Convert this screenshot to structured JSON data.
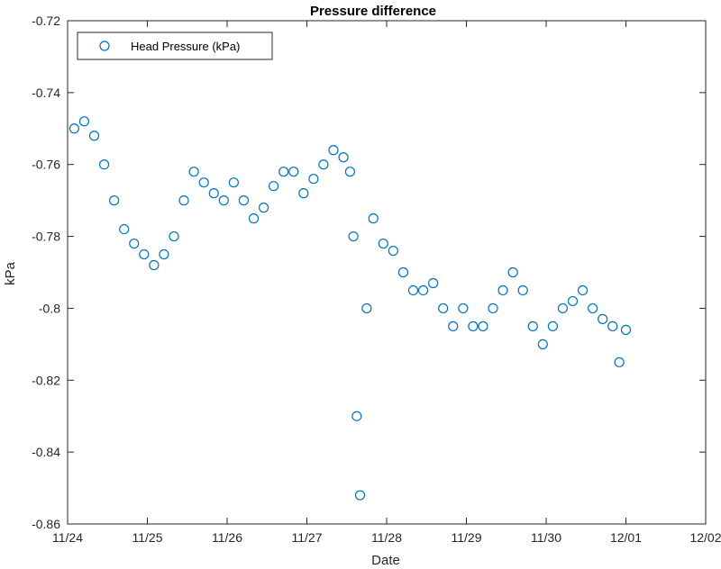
{
  "chart_data": {
    "type": "scatter",
    "title": "Pressure difference",
    "xlabel": "Date",
    "ylabel": "kPa",
    "x_tick_labels": [
      "11/24",
      "11/25",
      "11/26",
      "11/27",
      "11/28",
      "11/29",
      "11/30",
      "12/01",
      "12/02"
    ],
    "y_tick_labels": [
      "-0.72",
      "-0.74",
      "-0.76",
      "-0.78",
      "-0.8",
      "-0.82",
      "-0.84",
      "-0.86"
    ],
    "ylim": [
      -0.86,
      -0.72
    ],
    "xlim": [
      "11/24",
      "12/02"
    ],
    "grid": false,
    "legend_position": "top-left",
    "marker": "open-circle",
    "colors": {
      "series": "#0072bd"
    },
    "series": [
      {
        "name": "Head Pressure (kPa)",
        "x": [
          "11/24 02:00",
          "11/24 05:00",
          "11/24 08:00",
          "11/24 11:00",
          "11/24 14:00",
          "11/24 17:00",
          "11/24 20:00",
          "11/24 23:00",
          "11/25 02:00",
          "11/25 05:00",
          "11/25 08:00",
          "11/25 11:00",
          "11/25 14:00",
          "11/25 17:00",
          "11/25 20:00",
          "11/25 23:00",
          "11/26 02:00",
          "11/26 05:00",
          "11/26 08:00",
          "11/26 11:00",
          "11/26 14:00",
          "11/26 17:00",
          "11/26 20:00",
          "11/26 23:00",
          "11/27 02:00",
          "11/27 05:00",
          "11/27 08:00",
          "11/27 11:00",
          "11/27 13:00",
          "11/27 14:00",
          "11/27 15:00",
          "11/27 16:00",
          "11/27 18:00",
          "11/27 20:00",
          "11/27 23:00",
          "11/28 02:00",
          "11/28 05:00",
          "11/28 08:00",
          "11/28 11:00",
          "11/28 14:00",
          "11/28 17:00",
          "11/28 20:00",
          "11/28 23:00",
          "11/29 02:00",
          "11/29 05:00",
          "11/29 08:00",
          "11/29 11:00",
          "11/29 14:00",
          "11/29 17:00",
          "11/29 20:00",
          "11/29 23:00",
          "11/30 02:00",
          "11/30 05:00",
          "11/30 08:00",
          "11/30 11:00",
          "11/30 14:00",
          "11/30 17:00",
          "11/30 20:00",
          "11/30 22:00",
          "12/01 00:00"
        ],
        "y": [
          -0.75,
          -0.748,
          -0.752,
          -0.76,
          -0.77,
          -0.778,
          -0.782,
          -0.785,
          -0.788,
          -0.785,
          -0.78,
          -0.77,
          -0.762,
          -0.765,
          -0.768,
          -0.77,
          -0.765,
          -0.77,
          -0.775,
          -0.772,
          -0.766,
          -0.762,
          -0.762,
          -0.768,
          -0.764,
          -0.76,
          -0.756,
          -0.758,
          -0.762,
          -0.78,
          -0.83,
          -0.852,
          -0.8,
          -0.775,
          -0.782,
          -0.784,
          -0.79,
          -0.795,
          -0.795,
          -0.793,
          -0.8,
          -0.805,
          -0.8,
          -0.805,
          -0.805,
          -0.8,
          -0.795,
          -0.79,
          -0.795,
          -0.805,
          -0.81,
          -0.805,
          -0.8,
          -0.798,
          -0.795,
          -0.8,
          -0.803,
          -0.805,
          -0.815,
          -0.806
        ]
      }
    ]
  }
}
